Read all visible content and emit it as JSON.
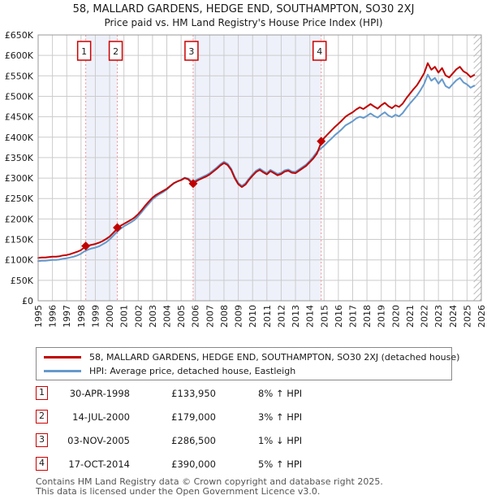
{
  "title": "58, MALLARD GARDENS, HEDGE END, SOUTHAMPTON, SO30 2XJ",
  "subtitle": "Price paid vs. HM Land Registry's House Price Index (HPI)",
  "legend": [
    {
      "label": "58, MALLARD GARDENS, HEDGE END, SOUTHAMPTON, SO30 2XJ (detached house)",
      "color": "#c00000"
    },
    {
      "label": "HPI: Average price, detached house, Eastleigh",
      "color": "#6699cc"
    }
  ],
  "sales": [
    {
      "n": "1",
      "date": "30-APR-1998",
      "price": "£133,950",
      "delta": "8% ↑ HPI",
      "year": 1998.33,
      "value": 133.95
    },
    {
      "n": "2",
      "date": "14-JUL-2000",
      "price": "£179,000",
      "delta": "3% ↑ HPI",
      "year": 2000.54,
      "value": 179
    },
    {
      "n": "3",
      "date": "03-NOV-2005",
      "price": "£286,500",
      "delta": "1% ↓ HPI",
      "year": 2005.84,
      "value": 286.5
    },
    {
      "n": "4",
      "date": "17-OCT-2014",
      "price": "£390,000",
      "delta": "5% ↑ HPI",
      "year": 2014.8,
      "value": 390
    }
  ],
  "footer": {
    "line1": "Contains HM Land Registry data © Crown copyright and database right 2025.",
    "line2": "This data is licensed under the Open Government Licence v3.0."
  },
  "colors": {
    "price_paid": "#c00000",
    "hpi": "#6699cc",
    "band": "#eef1fa",
    "grid": "#cccccc",
    "border": "#999999",
    "sale_line": "#f09090",
    "marker_box_border": "#cc0000",
    "hatch": "#bbbbbb",
    "tick_text": "#1a1a1a",
    "footer_text": "#555555"
  },
  "chart_data": {
    "type": "line",
    "title": "58, MALLARD GARDENS, HEDGE END, SOUTHAMPTON, SO30 2XJ",
    "subtitle": "Price paid vs. HM Land Registry's House Price Index (HPI)",
    "xlabel": "",
    "ylabel": "",
    "xlim": [
      1995,
      2026
    ],
    "ylim": [
      0,
      650
    ],
    "grid": true,
    "legend_position": "below",
    "x_ticks": [
      1995,
      1996,
      1997,
      1998,
      1999,
      2000,
      2001,
      2002,
      2003,
      2004,
      2005,
      2006,
      2007,
      2008,
      2009,
      2010,
      2011,
      2012,
      2013,
      2014,
      2015,
      2016,
      2017,
      2018,
      2019,
      2020,
      2021,
      2022,
      2023,
      2024,
      2025,
      2026
    ],
    "y_ticks": [
      {
        "v": 0,
        "t": "£0"
      },
      {
        "v": 50,
        "t": "£50K"
      },
      {
        "v": 100,
        "t": "£100K"
      },
      {
        "v": 150,
        "t": "£150K"
      },
      {
        "v": 200,
        "t": "£200K"
      },
      {
        "v": 250,
        "t": "£250K"
      },
      {
        "v": 300,
        "t": "£300K"
      },
      {
        "v": 350,
        "t": "£350K"
      },
      {
        "v": 400,
        "t": "£400K"
      },
      {
        "v": 450,
        "t": "£450K"
      },
      {
        "v": 500,
        "t": "£500K"
      },
      {
        "v": 550,
        "t": "£550K"
      },
      {
        "v": 600,
        "t": "£600K"
      },
      {
        "v": 650,
        "t": "£650K"
      }
    ],
    "y_unit": "GBP thousands",
    "x_start": 1995.0,
    "x_step": 0.25,
    "ownership_bands": [
      [
        1998.33,
        2000.54
      ],
      [
        2005.84,
        2014.8
      ]
    ],
    "hatch_start": 2025.47,
    "series": [
      {
        "name": "58, MALLARD GARDENS, HEDGE END, SOUTHAMPTON, SO30 2XJ (detached house)",
        "color": "#c00000",
        "values": [
          105,
          106,
          106,
          107,
          108,
          108,
          109,
          111,
          112,
          114,
          117,
          120,
          124,
          131,
          135,
          137,
          139,
          142,
          146,
          151,
          157,
          166,
          175,
          183,
          188,
          193,
          198,
          204,
          212,
          222,
          233,
          243,
          252,
          259,
          264,
          269,
          274,
          281,
          288,
          292,
          295,
          300,
          297,
          288,
          291,
          296,
          300,
          304,
          309,
          316,
          323,
          331,
          337,
          332,
          320,
          300,
          285,
          278,
          284,
          296,
          306,
          315,
          320,
          314,
          309,
          317,
          312,
          307,
          310,
          316,
          318,
          313,
          312,
          318,
          324,
          330,
          339,
          348,
          360,
          383,
          398,
          407,
          416,
          425,
          433,
          441,
          450,
          456,
          461,
          468,
          473,
          469,
          475,
          481,
          475,
          470,
          478,
          484,
          476,
          471,
          478,
          474,
          482,
          495,
          506,
          517,
          527,
          541,
          556,
          581,
          565,
          572,
          558,
          569,
          551,
          546,
          556,
          566,
          572,
          561,
          556,
          547,
          552
        ]
      },
      {
        "name": "HPI: Average price, detached house, Eastleigh",
        "color": "#6699cc",
        "values": [
          97,
          98,
          98,
          99,
          100,
          100,
          101,
          103,
          104,
          106,
          108,
          111,
          115,
          121,
          125,
          128,
          130,
          133,
          138,
          143,
          150,
          159,
          168,
          176,
          182,
          187,
          192,
          198,
          207,
          217,
          228,
          238,
          248,
          255,
          261,
          266,
          272,
          280,
          287,
          292,
          296,
          301,
          299,
          291,
          294,
          299,
          303,
          307,
          312,
          319,
          326,
          334,
          340,
          335,
          323,
          303,
          288,
          281,
          287,
          299,
          309,
          318,
          323,
          317,
          312,
          320,
          315,
          310,
          313,
          319,
          321,
          316,
          315,
          321,
          327,
          333,
          342,
          352,
          364,
          372,
          379,
          388,
          396,
          405,
          412,
          420,
          429,
          434,
          439,
          446,
          450,
          447,
          452,
          458,
          452,
          448,
          455,
          461,
          453,
          449,
          455,
          451,
          459,
          471,
          482,
          492,
          502,
          515,
          530,
          553,
          538,
          545,
          531,
          542,
          525,
          520,
          530,
          539,
          545,
          534,
          529,
          521,
          526
        ]
      }
    ],
    "markers": [
      {
        "label": "1",
        "x": 1998.33,
        "y": 133.95
      },
      {
        "label": "2",
        "x": 2000.54,
        "y": 179
      },
      {
        "label": "3",
        "x": 2005.84,
        "y": 286.5
      },
      {
        "label": "4",
        "x": 2014.8,
        "y": 390
      }
    ]
  }
}
